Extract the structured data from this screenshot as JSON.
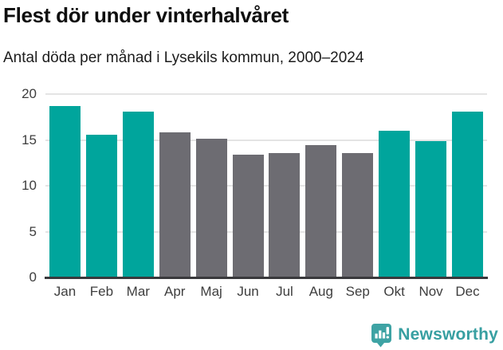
{
  "header": {
    "title": "Flest dör under vinterhalvåret",
    "subtitle": "Antal döda per månad i Lysekils kommun, 2000–2024"
  },
  "chart_data": {
    "type": "bar",
    "title": "Flest dör under vinterhalvåret",
    "subtitle": "Antal döda per månad i Lysekils kommun, 2000–2024",
    "categories": [
      "Jan",
      "Feb",
      "Mar",
      "Apr",
      "Maj",
      "Jun",
      "Jul",
      "Aug",
      "Sep",
      "Okt",
      "Nov",
      "Dec"
    ],
    "values": [
      18.7,
      15.6,
      18.1,
      15.8,
      15.1,
      13.4,
      13.6,
      14.4,
      13.6,
      16.0,
      14.9,
      18.1
    ],
    "groups": [
      "winter",
      "winter",
      "winter",
      "summer",
      "summer",
      "summer",
      "summer",
      "summer",
      "summer",
      "winter",
      "winter",
      "winter"
    ],
    "group_colors": {
      "winter": "#00a59c",
      "summer": "#6d6c72"
    },
    "xlabel": "",
    "ylabel": "",
    "ylim": [
      0,
      20
    ],
    "yticks": [
      0,
      5,
      10,
      15,
      20
    ],
    "grid": true,
    "legend_position": "none",
    "gridline_color": "#e4e4e4",
    "axis_line_color": "#39393c"
  },
  "footer": {
    "brand": "Newsworthy",
    "brand_color": "#379fa1",
    "logo_icon": "newsworthy-bars-exclamation-icon"
  }
}
